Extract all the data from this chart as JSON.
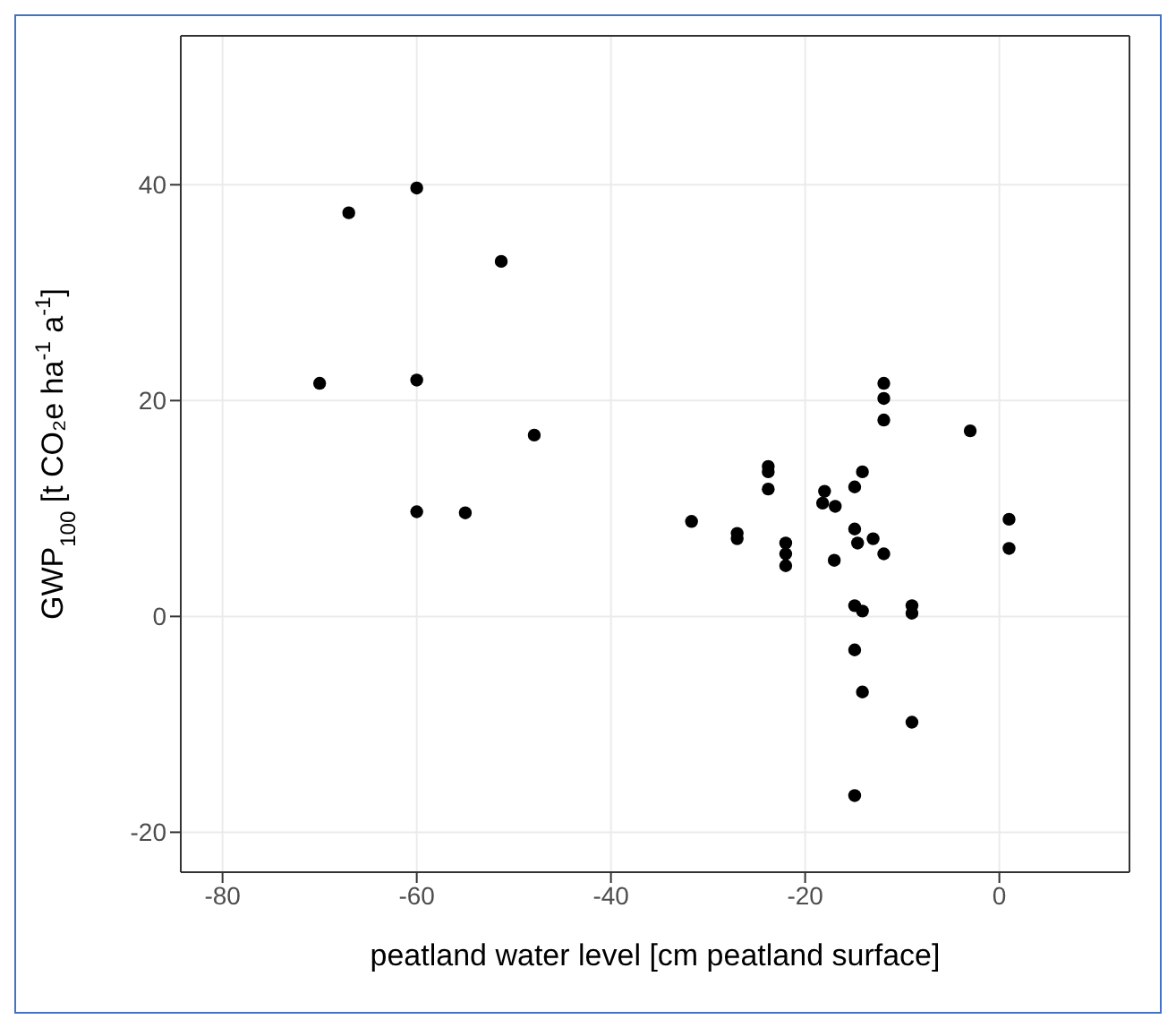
{
  "chart_data": {
    "type": "scatter",
    "xlabel": "peatland water level [cm peatland surface]",
    "ylabel": "GWP$_{100}$ [t CO₂e ha$^{-1}$ a$^{-1}$]",
    "x": [
      -60,
      -67,
      -51.3,
      -70,
      -60,
      -47.9,
      -60,
      -55,
      -11.9,
      -11.9,
      -11.9,
      -3,
      -23.8,
      -23.8,
      -23.8,
      -14.1,
      -14.9,
      -18,
      -18.2,
      -16.9,
      -31.7,
      -27,
      -27,
      -22,
      -22,
      -22,
      -14.9,
      -14.6,
      -13,
      -11.9,
      -17,
      1,
      1,
      -14.9,
      -14.1,
      -9,
      -9,
      -14.9,
      -14.1,
      -9,
      -14.9
    ],
    "values": [
      39.7,
      37.4,
      32.9,
      21.6,
      21.9,
      16.8,
      9.7,
      9.6,
      21.6,
      20.2,
      18.2,
      17.2,
      13.9,
      13.4,
      11.8,
      13.4,
      12,
      11.6,
      10.5,
      10.2,
      8.8,
      7.7,
      7.2,
      6.8,
      5.8,
      4.7,
      8.1,
      6.8,
      7.2,
      5.8,
      5.2,
      9,
      6.3,
      1,
      0.5,
      1,
      0.3,
      -3.1,
      -7,
      -9.8,
      -16.6
    ],
    "color": "#000000",
    "marker": "circle",
    "xlim": [
      -84.3,
      13.4
    ],
    "xticks": [
      -80,
      -60,
      -40,
      -20,
      0
    ],
    "ylim": [
      -23.7,
      53.8
    ],
    "yticks": [
      -20,
      0,
      20,
      40
    ],
    "grid": true
  }
}
